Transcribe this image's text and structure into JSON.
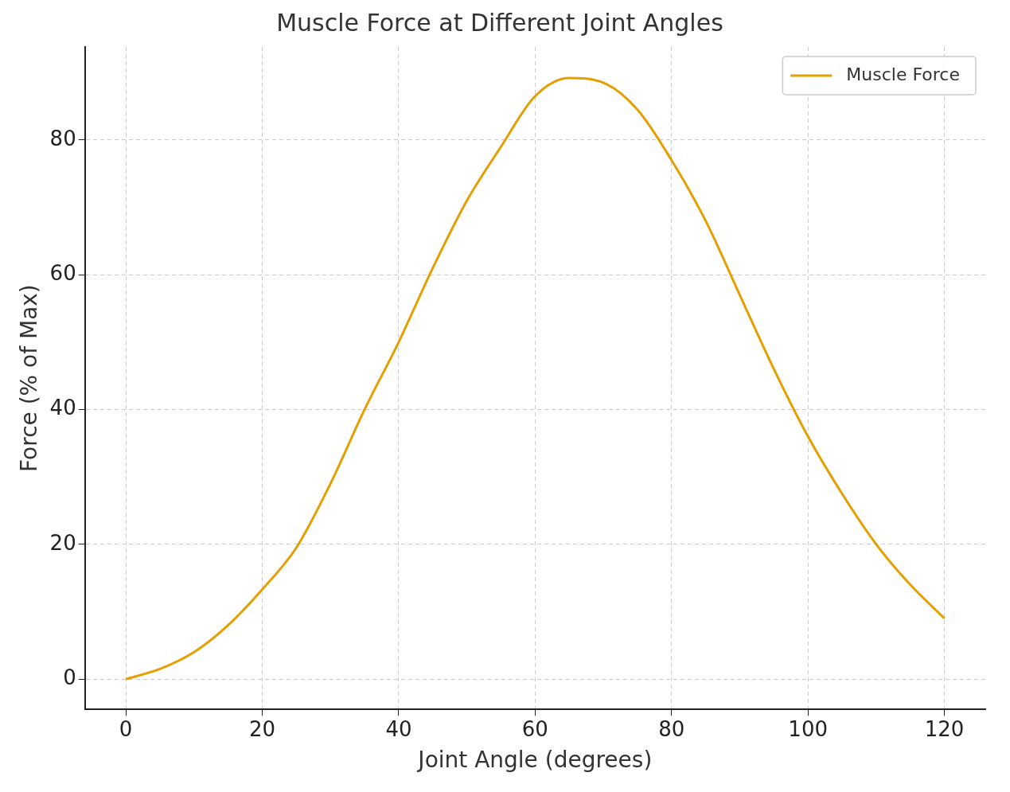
{
  "chart_data": {
    "type": "line",
    "title": "Muscle Force at Different Joint Angles",
    "xlabel": "Joint Angle (degrees)",
    "ylabel": "Force (% of Max)",
    "x": [
      0,
      5,
      10,
      15,
      20,
      25,
      30,
      35,
      40,
      45,
      50,
      55,
      60,
      65,
      70,
      75,
      80,
      85,
      90,
      95,
      100,
      105,
      110,
      115,
      120
    ],
    "series": [
      {
        "name": "Muscle Force",
        "color": "#e69f00",
        "values": [
          0,
          1.5,
          4,
          8,
          13.3,
          19.5,
          29,
          40,
          50,
          61,
          71,
          79,
          86.5,
          89.2,
          88.5,
          84.5,
          77,
          68,
          57,
          46,
          36,
          27.5,
          20,
          14,
          9
        ]
      }
    ],
    "xlim": [
      -6,
      126
    ],
    "ylim": [
      -4.5,
      93.8
    ],
    "xticks": [
      0,
      20,
      40,
      60,
      80,
      100,
      120
    ],
    "yticks": [
      0,
      20,
      40,
      60,
      80
    ],
    "grid": true,
    "legend": "top right",
    "line_style": "solid",
    "marker": "none"
  }
}
